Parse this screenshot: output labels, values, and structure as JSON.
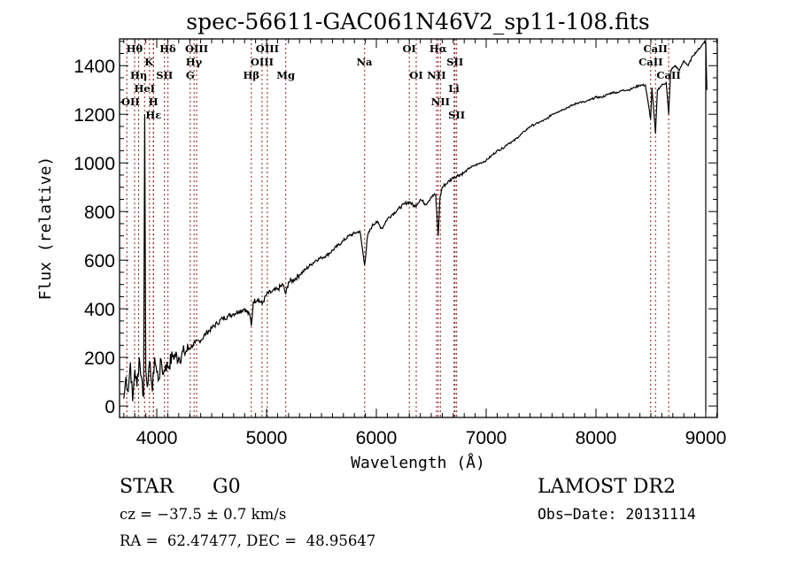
{
  "chart_data": {
    "type": "line",
    "title": "spec-56611-GAC061N46V2_sp11-108.fits",
    "xlabel": "Wavelength (Å)",
    "ylabel": "Flux (relative)",
    "xlim": [
      3661,
      9105
    ],
    "ylim": [
      -47,
      1510
    ],
    "x_ticks": [
      4000,
      5000,
      6000,
      7000,
      8000,
      9000
    ],
    "x_tick_labels": [
      "4000",
      "5000",
      "6000",
      "7000",
      "8000",
      "9000"
    ],
    "y_ticks": [
      0,
      200,
      400,
      600,
      800,
      1000,
      1200,
      1400
    ],
    "y_tick_labels": [
      "0",
      "200",
      "400",
      "600",
      "800",
      "1000",
      "1200",
      "1400"
    ],
    "grid": false,
    "line_color": "#000000",
    "marker_line_color": "#8b1a1a",
    "series": [
      {
        "name": "flux",
        "x": [
          3700,
          3720,
          3740,
          3760,
          3780,
          3800,
          3820,
          3840,
          3860,
          3880,
          3890,
          3900,
          3920,
          3940,
          3960,
          3980,
          4000,
          4020,
          4040,
          4060,
          4080,
          4100,
          4150,
          4200,
          4250,
          4300,
          4350,
          4400,
          4450,
          4500,
          4550,
          4600,
          4650,
          4700,
          4750,
          4800,
          4850,
          4861,
          4880,
          4920,
          4960,
          5000,
          5050,
          5100,
          5150,
          5175,
          5200,
          5250,
          5300,
          5350,
          5400,
          5450,
          5500,
          5550,
          5600,
          5650,
          5700,
          5750,
          5800,
          5850,
          5893,
          5920,
          5960,
          6000,
          6050,
          6100,
          6150,
          6200,
          6250,
          6300,
          6350,
          6400,
          6450,
          6500,
          6540,
          6563,
          6580,
          6600,
          6650,
          6700,
          6750,
          6800,
          6850,
          6900,
          6950,
          7000,
          7050,
          7100,
          7150,
          7200,
          7250,
          7300,
          7350,
          7400,
          7450,
          7500,
          7550,
          7600,
          7650,
          7700,
          7750,
          7800,
          7850,
          7900,
          7950,
          8000,
          8050,
          8100,
          8150,
          8200,
          8250,
          8300,
          8350,
          8400,
          8450,
          8498,
          8510,
          8542,
          8560,
          8600,
          8640,
          8662,
          8680,
          8720,
          8760,
          8800,
          8840,
          8880,
          8920,
          8960,
          8990,
          9000,
          9010
        ],
        "y": [
          30,
          120,
          60,
          180,
          20,
          150,
          80,
          200,
          120,
          40,
          1200,
          150,
          90,
          180,
          60,
          200,
          140,
          110,
          190,
          130,
          170,
          160,
          210,
          200,
          220,
          240,
          260,
          270,
          300,
          320,
          340,
          360,
          370,
          380,
          390,
          400,
          370,
          330,
          430,
          440,
          420,
          460,
          470,
          480,
          500,
          460,
          510,
          520,
          540,
          560,
          580,
          600,
          610,
          620,
          640,
          660,
          680,
          700,
          710,
          720,
          580,
          700,
          740,
          760,
          730,
          770,
          790,
          810,
          830,
          840,
          820,
          850,
          830,
          860,
          870,
          700,
          860,
          900,
          920,
          940,
          950,
          960,
          980,
          990,
          1000,
          1010,
          1030,
          1050,
          1060,
          1080,
          1090,
          1110,
          1130,
          1150,
          1160,
          1170,
          1180,
          1200,
          1210,
          1220,
          1230,
          1240,
          1250,
          1250,
          1260,
          1270,
          1270,
          1280,
          1290,
          1290,
          1300,
          1300,
          1310,
          1320,
          1320,
          1180,
          1310,
          1120,
          1300,
          1320,
          1330,
          1200,
          1380,
          1400,
          1380,
          1420,
          1400,
          1440,
          1460,
          1480,
          1500,
          1490,
          1300
        ]
      }
    ],
    "line_markers": [
      {
        "label": "Hθ",
        "wave": 3798,
        "row": 1
      },
      {
        "label": "OII",
        "wave": 3727,
        "row": 3
      },
      {
        "label": "Hη",
        "wave": 3835,
        "row": 2
      },
      {
        "label": "HeI",
        "wave": 3889,
        "row": 2
      },
      {
        "label": "Hε",
        "wave": 3970,
        "row": 3
      },
      {
        "label": "K",
        "wave": 3934,
        "row": 1
      },
      {
        "label": "H",
        "wave": 3969,
        "row": 3
      },
      {
        "label": "SII",
        "wave": 4070,
        "row": 2
      },
      {
        "label": "Hδ",
        "wave": 4102,
        "row": 1
      },
      {
        "label": "OIII",
        "wave": 4363,
        "row": 1
      },
      {
        "label": "Hγ",
        "wave": 4340,
        "row": 2
      },
      {
        "label": "G",
        "wave": 4305,
        "row": 3
      },
      {
        "label": "Hβ",
        "wave": 4861,
        "row": 3
      },
      {
        "label": "OIII",
        "wave": 4959,
        "row": 2
      },
      {
        "label": "OIII",
        "wave": 5007,
        "row": 1
      },
      {
        "label": "Mg",
        "wave": 5175,
        "row": 3
      },
      {
        "label": "Na",
        "wave": 5893,
        "row": 2
      },
      {
        "label": "OI",
        "wave": 6300,
        "row": 1
      },
      {
        "label": "OI",
        "wave": 6363,
        "row": 3
      },
      {
        "label": "Hα",
        "wave": 6563,
        "row": 1
      },
      {
        "label": "NII",
        "wave": 6548,
        "row": 2
      },
      {
        "label": "NII",
        "wave": 6583,
        "row": 3
      },
      {
        "label": "SII",
        "wave": 6716,
        "row": 1
      },
      {
        "label": "Li",
        "wave": 6708,
        "row": 2
      },
      {
        "label": "SII",
        "wave": 6731,
        "row": 3
      },
      {
        "label": "CaII",
        "wave": 8542,
        "row": 1
      },
      {
        "label": "CaII",
        "wave": 8498,
        "row": 2
      },
      {
        "label": "CaII",
        "wave": 8662,
        "row": 3
      }
    ]
  },
  "info": {
    "object_class": "STAR",
    "subclass": "G0",
    "redshift": "cz = −37.5 ± 0.7 km/s",
    "coordinates": "RA =  62.47477, DEC =  48.95647",
    "survey": "LAMOST DR2",
    "obs_date": "Obs−Date: 20131114"
  }
}
